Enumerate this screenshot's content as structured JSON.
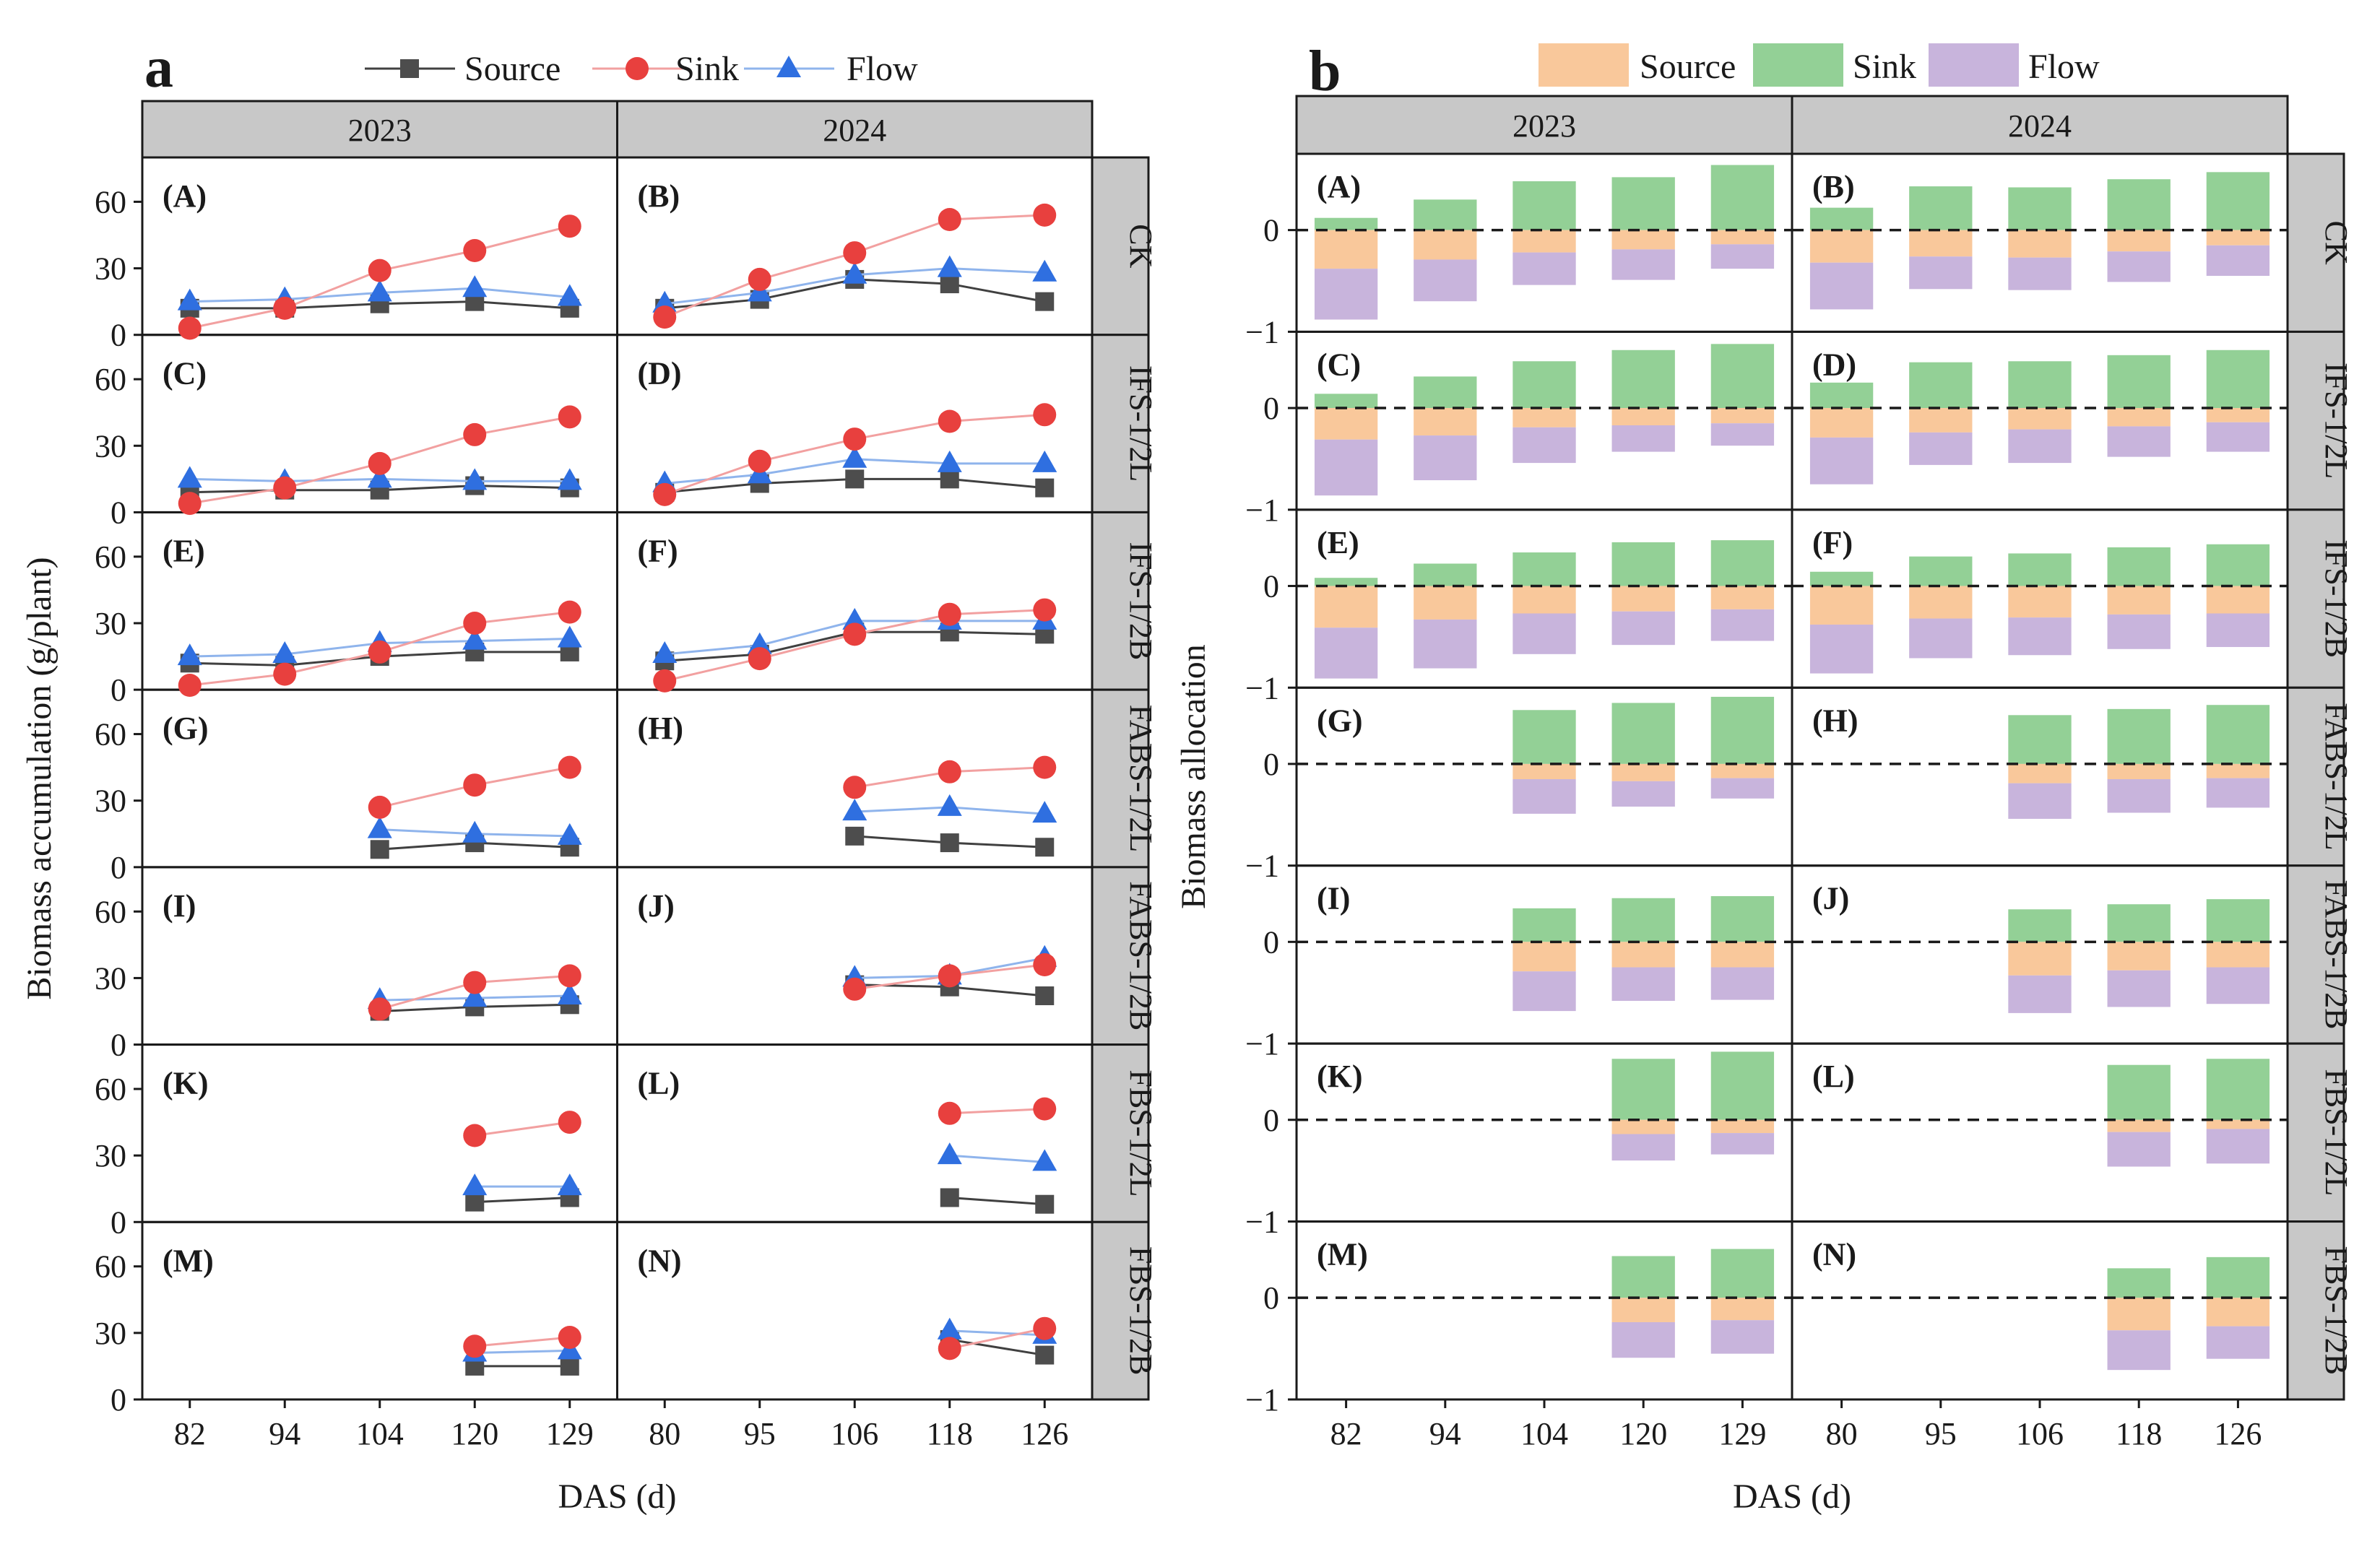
{
  "panel_a_tag": "a",
  "panel_b_tag": "b",
  "colors": {
    "source_line": "#404040",
    "source_marker": "#4d4d4d",
    "sink_line": "#f2a0a0",
    "sink_marker": "#e8403e",
    "flow_line": "#8fb4ec",
    "flow_marker": "#2f6fe0",
    "bar_source": "#f9c89b",
    "bar_sink": "#93d096",
    "bar_flow": "#c8b4dc",
    "strip": "#c8c8c8"
  },
  "chart_data": [
    {
      "id": "a",
      "type": "line",
      "legend": [
        "Source",
        "Sink",
        "Flow"
      ],
      "ylabel": "Biomass accumulation (g/plant)",
      "xlabel": "DAS (d)",
      "ylim": [
        0,
        80
      ],
      "yticks": [
        0,
        30,
        60
      ],
      "years": [
        {
          "year": "2023",
          "x": [
            82,
            94,
            104,
            120,
            129
          ]
        },
        {
          "year": "2024",
          "x": [
            80,
            95,
            106,
            118,
            126
          ]
        }
      ],
      "rows": [
        {
          "treatment": "CK",
          "panels": [
            {
              "label": "(A)",
              "source": [
                12,
                12,
                14,
                15,
                12
              ],
              "sink": [
                3,
                12,
                29,
                38,
                49
              ],
              "flow": [
                15,
                16,
                19,
                21,
                17
              ]
            },
            {
              "label": "(B)",
              "source": [
                12,
                16,
                25,
                23,
                15
              ],
              "sink": [
                8,
                25,
                37,
                52,
                54
              ],
              "flow": [
                14,
                19,
                27,
                30,
                28
              ]
            }
          ]
        },
        {
          "treatment": "IFS-1/2L",
          "panels": [
            {
              "label": "(C)",
              "source": [
                9,
                10,
                10,
                12,
                11
              ],
              "sink": [
                4,
                11,
                22,
                35,
                43
              ],
              "flow": [
                15,
                14,
                15,
                14,
                14
              ]
            },
            {
              "label": "(D)",
              "source": [
                9,
                13,
                15,
                15,
                11
              ],
              "sink": [
                8,
                23,
                33,
                41,
                44
              ],
              "flow": [
                13,
                17,
                24,
                22,
                22
              ]
            }
          ]
        },
        {
          "treatment": "IFS-1/2B",
          "panels": [
            {
              "label": "(E)",
              "source": [
                12,
                11,
                15,
                17,
                17
              ],
              "sink": [
                2,
                7,
                17,
                30,
                35
              ],
              "flow": [
                15,
                16,
                21,
                22,
                23
              ]
            },
            {
              "label": "(F)",
              "source": [
                13,
                16,
                26,
                26,
                25
              ],
              "sink": [
                4,
                14,
                25,
                34,
                36
              ],
              "flow": [
                16,
                20,
                31,
                31,
                31
              ]
            }
          ]
        },
        {
          "treatment": "FABS-1/2L",
          "panels": [
            {
              "label": "(G)",
              "source": [
                null,
                null,
                8,
                11,
                9
              ],
              "sink": [
                null,
                null,
                27,
                37,
                45
              ],
              "flow": [
                null,
                null,
                17,
                15,
                14
              ]
            },
            {
              "label": "(H)",
              "source": [
                null,
                null,
                14,
                11,
                9
              ],
              "sink": [
                null,
                null,
                36,
                43,
                45
              ],
              "flow": [
                null,
                null,
                25,
                27,
                24
              ]
            }
          ]
        },
        {
          "treatment": "FABS-1/2B",
          "panels": [
            {
              "label": "(I)",
              "source": [
                null,
                null,
                15,
                17,
                18
              ],
              "sink": [
                null,
                null,
                16,
                28,
                31
              ],
              "flow": [
                null,
                null,
                20,
                21,
                22
              ]
            },
            {
              "label": "(J)",
              "source": [
                null,
                null,
                27,
                26,
                22
              ],
              "sink": [
                null,
                null,
                25,
                31,
                36
              ],
              "flow": [
                null,
                null,
                30,
                31,
                39
              ]
            }
          ]
        },
        {
          "treatment": "FBS-1/2L",
          "panels": [
            {
              "label": "(K)",
              "source": [
                null,
                null,
                null,
                9,
                11
              ],
              "sink": [
                null,
                null,
                null,
                39,
                45
              ],
              "flow": [
                null,
                null,
                null,
                16,
                16
              ]
            },
            {
              "label": "(L)",
              "source": [
                null,
                null,
                null,
                11,
                8
              ],
              "sink": [
                null,
                null,
                null,
                49,
                51
              ],
              "flow": [
                null,
                null,
                null,
                30,
                27
              ]
            }
          ]
        },
        {
          "treatment": "FBS-1/2B",
          "panels": [
            {
              "label": "(M)",
              "source": [
                null,
                null,
                null,
                15,
                15
              ],
              "sink": [
                null,
                null,
                null,
                24,
                28
              ],
              "flow": [
                null,
                null,
                null,
                21,
                22
              ]
            },
            {
              "label": "(N)",
              "source": [
                null,
                null,
                null,
                27,
                20
              ],
              "sink": [
                null,
                null,
                null,
                23,
                32
              ],
              "flow": [
                null,
                null,
                null,
                31,
                29
              ]
            }
          ]
        }
      ]
    },
    {
      "id": "b",
      "type": "bar",
      "stacked": true,
      "legend": [
        "Source",
        "Sink",
        "Flow"
      ],
      "ylabel": "Biomass  allocation",
      "xlabel": "DAS (d)",
      "ylim": [
        -1,
        0.75
      ],
      "yticks": [
        -1,
        0
      ],
      "ytick_labels": [
        "−1",
        "0"
      ],
      "note": "sink plotted above zero; source (0 to -s) and flow (-s to -(s+f)) stacked below zero",
      "years": [
        {
          "year": "2023",
          "x": [
            82,
            94,
            104,
            120,
            129
          ]
        },
        {
          "year": "2024",
          "x": [
            80,
            95,
            106,
            118,
            126
          ]
        }
      ],
      "rows": [
        {
          "treatment": "CK",
          "panels": [
            {
              "label": "(A)",
              "sink": [
                0.12,
                0.3,
                0.48,
                0.52,
                0.64
              ],
              "source": [
                0.38,
                0.29,
                0.22,
                0.19,
                0.14
              ],
              "flow": [
                0.5,
                0.41,
                0.32,
                0.3,
                0.24
              ]
            },
            {
              "label": "(B)",
              "sink": [
                0.22,
                0.43,
                0.42,
                0.5,
                0.57
              ],
              "source": [
                0.32,
                0.26,
                0.27,
                0.21,
                0.15
              ],
              "flow": [
                0.46,
                0.32,
                0.32,
                0.3,
                0.3
              ]
            }
          ]
        },
        {
          "treatment": "IFS-1/2L",
          "panels": [
            {
              "label": "(C)",
              "sink": [
                0.14,
                0.31,
                0.46,
                0.57,
                0.63
              ],
              "source": [
                0.31,
                0.27,
                0.19,
                0.17,
                0.15
              ],
              "flow": [
                0.55,
                0.44,
                0.35,
                0.26,
                0.22
              ]
            },
            {
              "label": "(D)",
              "sink": [
                0.25,
                0.45,
                0.46,
                0.52,
                0.57
              ],
              "source": [
                0.29,
                0.24,
                0.21,
                0.18,
                0.14
              ],
              "flow": [
                0.46,
                0.32,
                0.33,
                0.3,
                0.29
              ]
            }
          ]
        },
        {
          "treatment": "IFS-1/2B",
          "panels": [
            {
              "label": "(E)",
              "sink": [
                0.08,
                0.22,
                0.33,
                0.43,
                0.45
              ],
              "source": [
                0.41,
                0.33,
                0.27,
                0.25,
                0.23
              ],
              "flow": [
                0.5,
                0.48,
                0.4,
                0.33,
                0.31
              ]
            },
            {
              "label": "(F)",
              "sink": [
                0.14,
                0.29,
                0.32,
                0.38,
                0.41
              ],
              "source": [
                0.38,
                0.32,
                0.31,
                0.28,
                0.27
              ],
              "flow": [
                0.48,
                0.39,
                0.37,
                0.34,
                0.33
              ]
            }
          ]
        },
        {
          "treatment": "FABS-1/2L",
          "panels": [
            {
              "label": "(G)",
              "sink": [
                null,
                null,
                0.53,
                0.6,
                0.66
              ],
              "source": [
                null,
                null,
                0.15,
                0.17,
                0.14
              ],
              "flow": [
                null,
                null,
                0.34,
                0.25,
                0.2
              ]
            },
            {
              "label": "(H)",
              "sink": [
                null,
                null,
                0.48,
                0.54,
                0.58
              ],
              "source": [
                null,
                null,
                0.19,
                0.15,
                0.14
              ],
              "flow": [
                null,
                null,
                0.35,
                0.33,
                0.29
              ]
            }
          ]
        },
        {
          "treatment": "FABS-1/2B",
          "panels": [
            {
              "label": "(I)",
              "sink": [
                null,
                null,
                0.33,
                0.43,
                0.45
              ],
              "source": [
                null,
                null,
                0.29,
                0.25,
                0.25
              ],
              "flow": [
                null,
                null,
                0.39,
                0.33,
                0.32
              ]
            },
            {
              "label": "(J)",
              "sink": [
                null,
                null,
                0.32,
                0.37,
                0.42
              ],
              "source": [
                null,
                null,
                0.33,
                0.28,
                0.25
              ],
              "flow": [
                null,
                null,
                0.37,
                0.36,
                0.36
              ]
            }
          ]
        },
        {
          "treatment": "FBS-1/2L",
          "panels": [
            {
              "label": "(K)",
              "sink": [
                null,
                null,
                null,
                0.6,
                0.67
              ],
              "source": [
                null,
                null,
                null,
                0.14,
                0.13
              ],
              "flow": [
                null,
                null,
                null,
                0.26,
                0.21
              ]
            },
            {
              "label": "(L)",
              "sink": [
                null,
                null,
                null,
                0.54,
                0.6
              ],
              "source": [
                null,
                null,
                null,
                0.12,
                0.09
              ],
              "flow": [
                null,
                null,
                null,
                0.34,
                0.34
              ]
            }
          ]
        },
        {
          "treatment": "FBS-1/2B",
          "panels": [
            {
              "label": "(M)",
              "sink": [
                null,
                null,
                null,
                0.41,
                0.48
              ],
              "source": [
                null,
                null,
                null,
                0.24,
                0.22
              ],
              "flow": [
                null,
                null,
                null,
                0.35,
                0.33
              ]
            },
            {
              "label": "(N)",
              "sink": [
                null,
                null,
                null,
                0.29,
                0.4
              ],
              "source": [
                null,
                null,
                null,
                0.32,
                0.28
              ],
              "flow": [
                null,
                null,
                null,
                0.39,
                0.32
              ]
            }
          ]
        }
      ]
    }
  ]
}
